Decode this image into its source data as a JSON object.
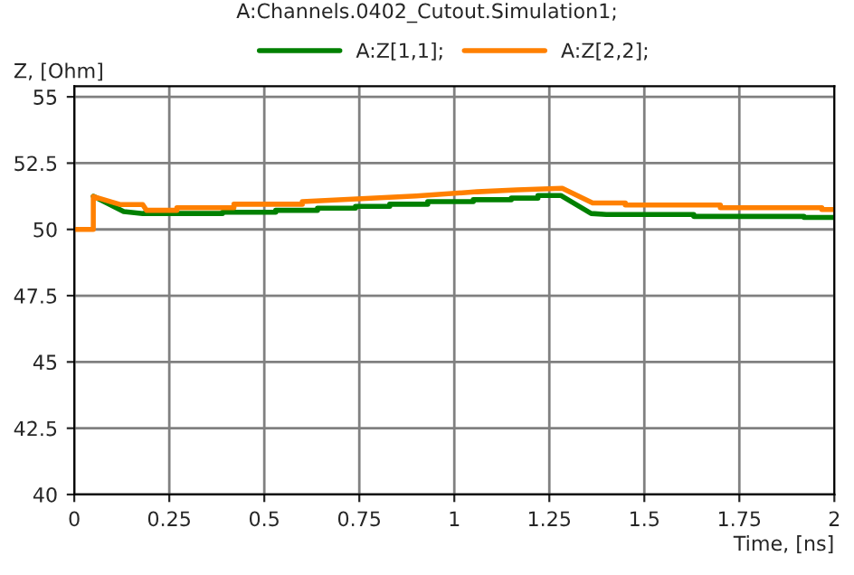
{
  "chart_data": {
    "type": "line",
    "title": "A:Channels.0402_Cutout.Simulation1;",
    "xlabel": "Time, [ns]",
    "ylabel": "Z, [Ohm]",
    "series": [
      {
        "name": "A:Z[1,1];",
        "color": "#008000",
        "x": [
          0.05,
          0.13,
          0.18,
          0.39,
          0.39,
          0.53,
          0.53,
          0.64,
          0.64,
          0.74,
          0.74,
          0.83,
          0.83,
          0.93,
          0.93,
          1.05,
          1.05,
          1.15,
          1.15,
          1.22,
          1.22,
          1.28,
          1.36,
          1.4,
          1.63,
          1.63,
          1.92,
          1.92,
          2
        ],
        "values": [
          51.25,
          50.67,
          50.6,
          50.6,
          50.65,
          50.65,
          50.72,
          50.72,
          50.8,
          50.8,
          50.87,
          50.87,
          50.95,
          50.95,
          51.05,
          51.05,
          51.12,
          51.12,
          51.18,
          51.18,
          51.28,
          51.28,
          50.6,
          50.56,
          50.56,
          50.49,
          50.49,
          50.45,
          50.45
        ]
      },
      {
        "name": "A:Z[2,2];",
        "color": "#ff8000",
        "x": [
          0,
          0.05,
          0.05,
          0.12,
          0.16,
          0.18,
          0.19,
          0.27,
          0.27,
          0.42,
          0.42,
          0.6,
          0.6,
          0.9,
          1.06,
          1.165,
          1.284,
          1.364,
          1.45,
          1.45,
          1.7,
          1.7,
          1.967,
          1.967,
          2
        ],
        "values": [
          50,
          50,
          51.24,
          50.94,
          50.94,
          50.94,
          50.72,
          50.72,
          50.82,
          50.82,
          50.95,
          50.95,
          51.05,
          51.26,
          51.42,
          51.49,
          51.55,
          51.0,
          51.0,
          50.92,
          50.92,
          50.82,
          50.82,
          50.75,
          50.75
        ]
      }
    ],
    "xlim": [
      0,
      2
    ],
    "ylim": [
      40,
      55.4
    ],
    "xticks": [
      0,
      0.25,
      0.5,
      0.75,
      1,
      1.25,
      1.5,
      1.75,
      2
    ],
    "yticks": [
      40,
      42.5,
      45,
      47.5,
      50,
      52.5,
      55
    ],
    "grid": true,
    "legend": "top",
    "line_style": "solid",
    "marker": "none"
  }
}
